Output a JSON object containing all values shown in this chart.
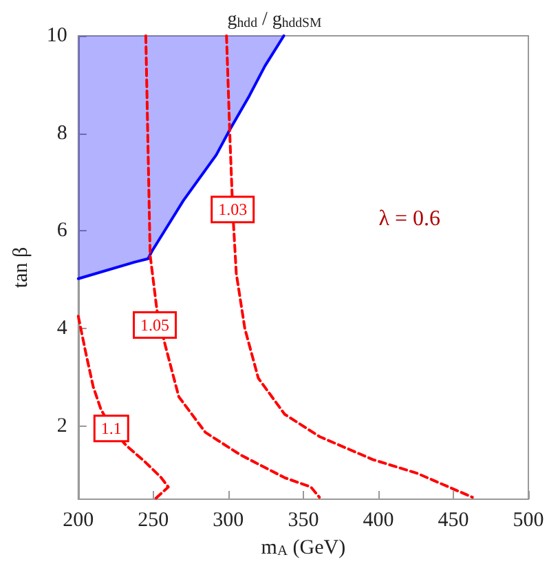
{
  "chart_data": {
    "type": "line",
    "title": "g$_{hdd}$ / g$_{hdd}$$_{SM}$",
    "xlabel": "m$_{A}$ (GeV)",
    "ylabel": "tan β",
    "xlim": [
      200,
      500
    ],
    "xticks": [
      200,
      250,
      300,
      350,
      400,
      450,
      500
    ],
    "ylim": [
      0.5,
      10
    ],
    "yticks": [
      2,
      4,
      6,
      8,
      10
    ],
    "grid": false,
    "line_style": "dashed",
    "series": [
      {
        "color": "#0000ff",
        "line_style": "solid",
        "x": [
          200,
          237.6,
          246.5,
          249.4,
          270,
          292,
          300.9,
          314,
          324.4,
          337
        ],
        "values": [
          5.02,
          5.36,
          5.43,
          5.6,
          6.62,
          7.56,
          8.07,
          8.77,
          9.38,
          10
        ],
        "lower": [
          5.02,
          5.36,
          5.43,
          5.6,
          6.62,
          7.56,
          8.07,
          8.77,
          9.38,
          10
        ],
        "upper": [
          10,
          10,
          10,
          10,
          10,
          10,
          10,
          10,
          10,
          10
        ]
      },
      {
        "color": "#ff0000",
        "x": [
          200,
          205,
          210,
          215,
          222,
          232,
          245,
          255,
          260,
          251
        ],
        "values": [
          4.25,
          3.5,
          2.8,
          2.35,
          1.95,
          1.6,
          1.25,
          0.95,
          0.75,
          0.5
        ]
      },
      {
        "color": "#ff0000",
        "x": [
          245,
          247.9,
          249.4,
          252.4,
          258,
          267,
          284.7,
          308,
          337.6,
          355,
          360.7
        ],
        "values": [
          10,
          5.5,
          5.13,
          4.38,
          3.65,
          2.6,
          1.87,
          1.41,
          0.94,
          0.75,
          0.54
        ]
      },
      {
        "color": "#ff0000",
        "x": [
          298.8,
          300.9,
          302.9,
          305.3,
          311,
          320,
          337.6,
          361,
          396.5,
          425.9,
          462.7
        ],
        "values": [
          10,
          8.06,
          6.44,
          5.13,
          4,
          2.98,
          2.24,
          1.78,
          1.31,
          1.03,
          0.54
        ]
      }
    ],
    "annotations": [
      {
        "text": "1.1",
        "x": 222,
        "y": 1.95
      },
      {
        "text": "1.05",
        "x": 251,
        "y": 4.07
      },
      {
        "text": "1.03",
        "x": 302.9,
        "y": 6.44
      },
      "λ = 0.6"
    ]
  }
}
